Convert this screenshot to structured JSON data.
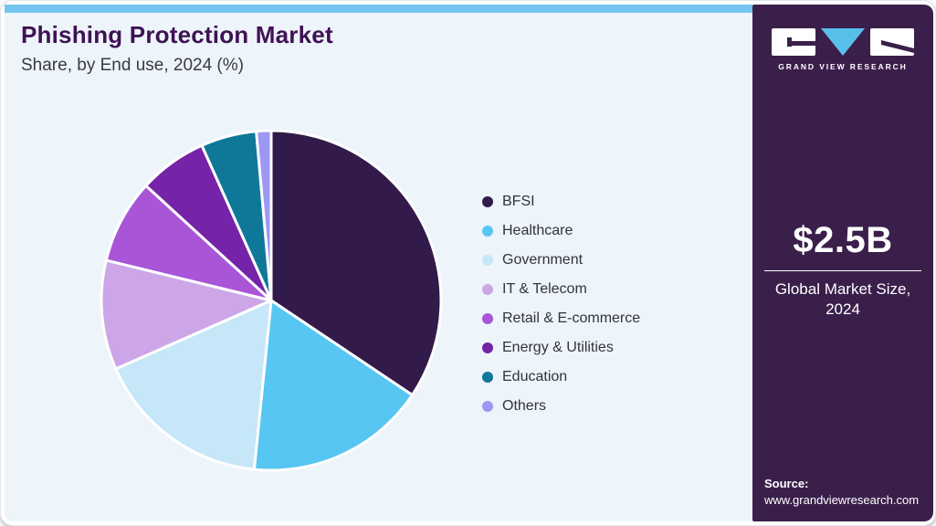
{
  "header": {
    "title": "Phishing Protection Market",
    "subtitle": "Share, by End use, 2024 (%)"
  },
  "chart_data": {
    "type": "pie",
    "title": "Phishing Protection Market Share, by End use, 2024 (%)",
    "unit": "%",
    "legend_position": "right",
    "start_angle_deg": 0,
    "direction": "clockwise",
    "series": [
      {
        "name": "BFSI",
        "value": 34.4,
        "color": "#321a4a"
      },
      {
        "name": "Healthcare",
        "value": 17.2,
        "color": "#58c6f2"
      },
      {
        "name": "Government",
        "value": 16.8,
        "color": "#c5e7f8"
      },
      {
        "name": "IT & Telecom",
        "value": 10.4,
        "color": "#cda6e8"
      },
      {
        "name": "Retail & E-commerce",
        "value": 8.0,
        "color": "#a855d8"
      },
      {
        "name": "Energy & Utilities",
        "value": 6.5,
        "color": "#7523a8"
      },
      {
        "name": "Education",
        "value": 5.3,
        "color": "#0f7898"
      },
      {
        "name": "Others",
        "value": 1.4,
        "color": "#9d98f3"
      }
    ]
  },
  "sidebar": {
    "brand": "GRAND VIEW RESEARCH",
    "market_size": "$2.5B",
    "market_size_label": "Global Market Size, 2024",
    "source_label": "Source:",
    "source_url": "www.grandviewresearch.com"
  },
  "theme": {
    "top_bar": "#74c6f0",
    "panel_bg": "#edf4fa",
    "title_color": "#3f1254",
    "sidebar_bg": "#3b1f4b",
    "logo_accent": "#57c0ea",
    "slice_stroke": "#ffffff"
  }
}
